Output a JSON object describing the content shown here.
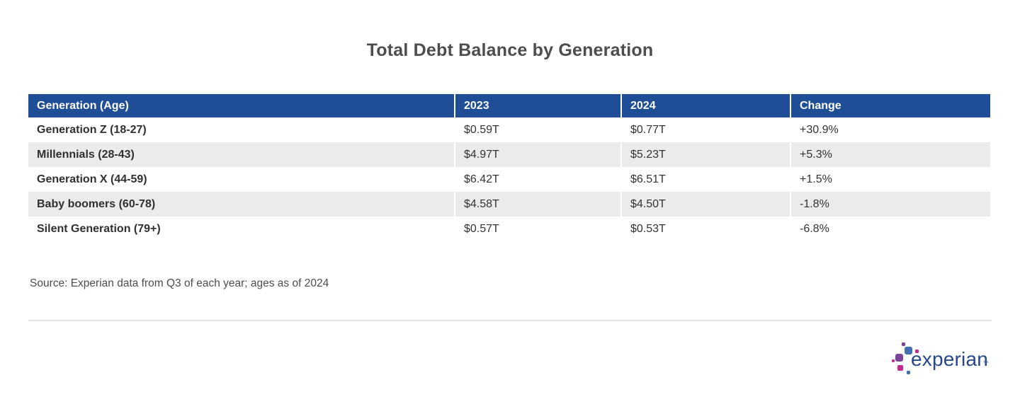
{
  "title": "Total Debt Balance by Generation",
  "table": {
    "columns": [
      "Generation (Age)",
      "2023",
      "2024",
      "Change"
    ],
    "rows": [
      [
        "Generation Z (18-27)",
        "$0.59T",
        "$0.77T",
        "+30.9%"
      ],
      [
        "Millennials (28-43)",
        "$4.97T",
        "$5.23T",
        "+5.3%"
      ],
      [
        "Generation X (44-59)",
        "$6.42T",
        "$6.51T",
        "+1.5%"
      ],
      [
        "Baby boomers (60-78)",
        "$4.58T",
        "$4.50T",
        "-1.8%"
      ],
      [
        "Silent Generation (79+)",
        "$0.57T",
        "$0.53T",
        "-6.8%"
      ]
    ]
  },
  "source": "Source: Experian data from Q3 of each year; ages as of 2024",
  "logo": {
    "brand": "experian",
    "trademark": "™"
  },
  "colors": {
    "header-bg": "#1f4e96",
    "header-fg": "#ffffff",
    "row-alt": "#ebebeb",
    "divider": "#e4e4e4",
    "logo-navy": "#26478d",
    "logo-blue": "#436eb2",
    "logo-purple": "#7b4399",
    "logo-magenta": "#c42a8e"
  },
  "chart_data": {
    "type": "table",
    "title": "Total Debt Balance by Generation",
    "columns": [
      "Generation (Age)",
      "2023",
      "2024",
      "Change"
    ],
    "rows": [
      {
        "generation": "Generation Z (18-27)",
        "debt_2023_trillions": 0.59,
        "debt_2024_trillions": 0.77,
        "change_pct": 30.9
      },
      {
        "generation": "Millennials (28-43)",
        "debt_2023_trillions": 4.97,
        "debt_2024_trillions": 5.23,
        "change_pct": 5.3
      },
      {
        "generation": "Generation X (44-59)",
        "debt_2023_trillions": 6.42,
        "debt_2024_trillions": 6.51,
        "change_pct": 1.5
      },
      {
        "generation": "Baby boomers (60-78)",
        "debt_2023_trillions": 4.58,
        "debt_2024_trillions": 4.5,
        "change_pct": -1.8
      },
      {
        "generation": "Silent Generation (79+)",
        "debt_2023_trillions": 0.57,
        "debt_2024_trillions": 0.53,
        "change_pct": -6.8
      }
    ],
    "units": "trillions USD",
    "source": "Source: Experian data from Q3 of each year; ages as of 2024"
  }
}
